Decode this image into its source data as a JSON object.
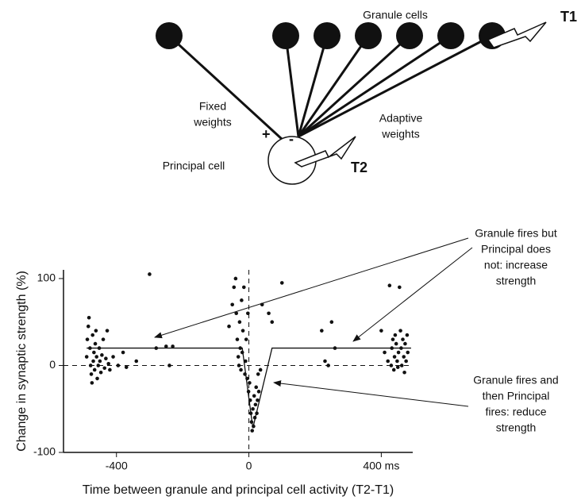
{
  "diagram": {
    "granule_label": "Granule cells",
    "t1": "T1",
    "fixed_weights": [
      "Fixed",
      "weights"
    ],
    "plus": "+",
    "minus": "-",
    "adaptive_weights": [
      "Adaptive",
      "weights"
    ],
    "principal_label": "Principal cell",
    "t2": "T2"
  },
  "chart_data": {
    "type": "scatter",
    "x_label": "Time between granule and principal cell activity (T2-T1)",
    "y_label": "Change in synaptic strength (%)",
    "xlim": [
      -560,
      495
    ],
    "ylim": [
      -100,
      110
    ],
    "xticks": [
      -400,
      0,
      {
        "value": 400,
        "label": "400 ms"
      }
    ],
    "yticks": [
      -100,
      0,
      100
    ],
    "color": "#111111",
    "x": [
      -490,
      -488,
      -485,
      -483,
      -480,
      -478,
      -476,
      -474,
      -472,
      -470,
      -468,
      -466,
      -464,
      -462,
      -460,
      -458,
      -455,
      -452,
      -450,
      -447,
      -444,
      -440,
      -436,
      -432,
      -428,
      -424,
      -420,
      -410,
      -395,
      -380,
      -370,
      -340,
      -300,
      -280,
      -250,
      -240,
      -230,
      -60,
      -50,
      -45,
      -40,
      -38,
      -35,
      -32,
      -30,
      -28,
      -26,
      -24,
      -22,
      -20,
      -18,
      -15,
      -12,
      -10,
      -8,
      -5,
      -3,
      -1,
      2,
      4,
      6,
      8,
      10,
      12,
      14,
      16,
      18,
      20,
      22,
      24,
      26,
      28,
      30,
      35,
      40,
      60,
      70,
      100,
      220,
      230,
      240,
      260,
      250,
      400,
      410,
      420,
      425,
      430,
      432,
      435,
      438,
      440,
      442,
      445,
      448,
      450,
      452,
      455,
      458,
      460,
      462,
      465,
      468,
      470,
      472,
      475,
      478,
      480
    ],
    "y": [
      10,
      30,
      45,
      55,
      20,
      0,
      -10,
      -20,
      35,
      5,
      15,
      -5,
      25,
      40,
      10,
      -15,
      0,
      20,
      5,
      -8,
      12,
      30,
      -3,
      8,
      40,
      2,
      -5,
      10,
      0,
      15,
      -2,
      5,
      105,
      20,
      22,
      0,
      22,
      45,
      70,
      90,
      100,
      60,
      30,
      10,
      0,
      50,
      20,
      -5,
      75,
      15,
      40,
      90,
      -10,
      5,
      30,
      -15,
      60,
      -30,
      -20,
      -40,
      -55,
      -65,
      -75,
      -50,
      -70,
      -35,
      -60,
      -45,
      -25,
      -55,
      -40,
      -10,
      -30,
      -5,
      70,
      60,
      50,
      95,
      40,
      5,
      0,
      20,
      50,
      40,
      15,
      5,
      92,
      0,
      20,
      30,
      -5,
      10,
      35,
      25,
      5,
      -2,
      15,
      90,
      40,
      20,
      0,
      30,
      10,
      -8,
      25,
      5,
      35,
      15
    ],
    "fit": {
      "x": [
        -490,
        -20,
        12,
        70,
        490
      ],
      "y": [
        20,
        20,
        -72,
        20,
        20
      ]
    },
    "annotations": [
      [
        "Granule fires but",
        "Principal does",
        "not: increase",
        "strength"
      ],
      [
        "Granule fires and",
        "then Principal",
        "fires: reduce",
        "strength"
      ]
    ]
  }
}
